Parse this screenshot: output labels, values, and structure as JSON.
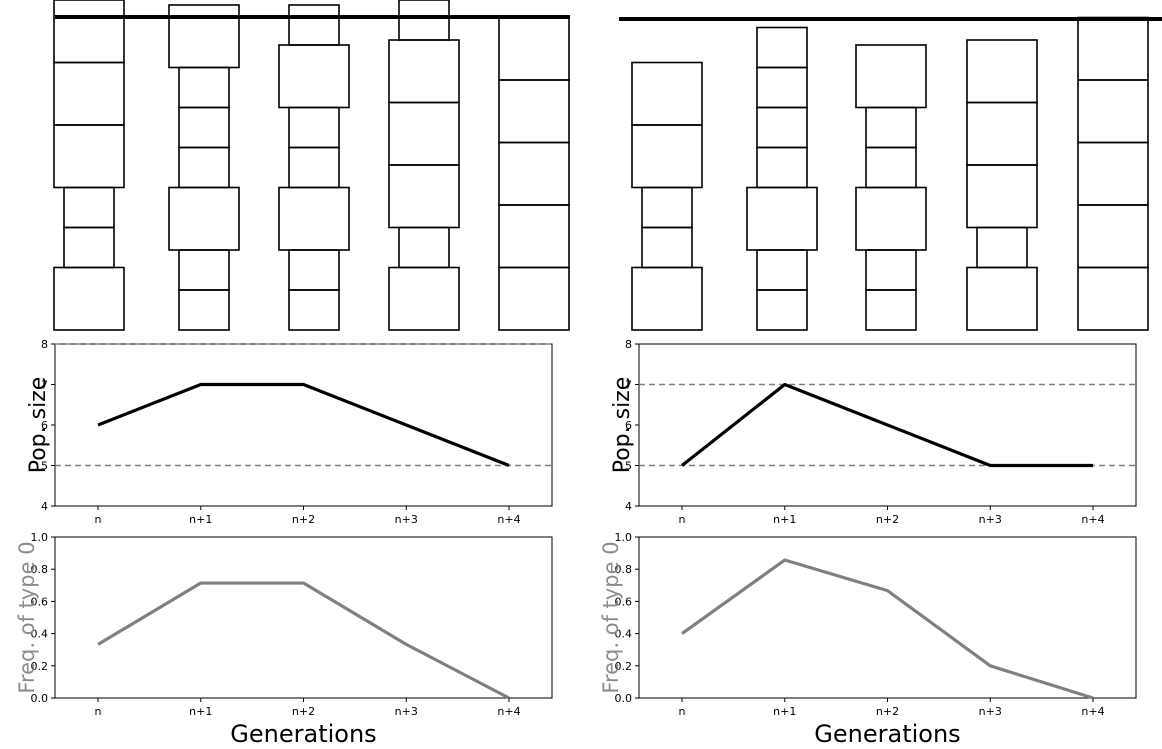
{
  "colors": {
    "popsize_line": "#000000",
    "freq_line": "#808080",
    "freq_label": "#8c8c8c",
    "dashed": "#808080",
    "axis": "#000000"
  },
  "chart_data": [
    {
      "panel": "left",
      "type": "cell-lineage-diagram",
      "columns": [
        {
          "gen": "n",
          "cells": [
            {
              "kind": "big",
              "split": "top"
            },
            {
              "kind": "big"
            },
            {
              "kind": "big"
            },
            {
              "kind": "small"
            },
            {
              "kind": "small"
            },
            {
              "kind": "big"
            }
          ]
        },
        {
          "gen": "n+1",
          "cells": [
            {
              "kind": "big",
              "split": "top"
            },
            {
              "kind": "small"
            },
            {
              "kind": "small"
            },
            {
              "kind": "small"
            },
            {
              "kind": "big"
            },
            {
              "kind": "small"
            },
            {
              "kind": "small"
            }
          ]
        },
        {
          "gen": "n+2",
          "cells": [
            {
              "kind": "small",
              "split": "top"
            },
            {
              "kind": "big"
            },
            {
              "kind": "small"
            },
            {
              "kind": "small"
            },
            {
              "kind": "big"
            },
            {
              "kind": "small"
            },
            {
              "kind": "small"
            }
          ]
        },
        {
          "gen": "n+3",
          "cells": [
            {
              "kind": "small",
              "split": "top"
            },
            {
              "kind": "big"
            },
            {
              "kind": "big"
            },
            {
              "kind": "big"
            },
            {
              "kind": "small"
            },
            {
              "kind": "big"
            }
          ]
        },
        {
          "gen": "n+4",
          "cells": [
            {
              "kind": "big"
            },
            {
              "kind": "big"
            },
            {
              "kind": "big"
            },
            {
              "kind": "big"
            },
            {
              "kind": "big"
            }
          ]
        }
      ]
    },
    {
      "panel": "right",
      "type": "cell-lineage-diagram",
      "columns": [
        {
          "gen": "n",
          "cells": [
            {
              "kind": "big"
            },
            {
              "kind": "big"
            },
            {
              "kind": "small"
            },
            {
              "kind": "small"
            },
            {
              "kind": "big"
            }
          ]
        },
        {
          "gen": "n+1",
          "cells": [
            {
              "kind": "small"
            },
            {
              "kind": "small"
            },
            {
              "kind": "small"
            },
            {
              "kind": "small"
            },
            {
              "kind": "big"
            },
            {
              "kind": "small"
            },
            {
              "kind": "small"
            }
          ]
        },
        {
          "gen": "n+2",
          "cells": [
            {
              "kind": "big"
            },
            {
              "kind": "small"
            },
            {
              "kind": "small"
            },
            {
              "kind": "big"
            },
            {
              "kind": "small"
            },
            {
              "kind": "small"
            }
          ]
        },
        {
          "gen": "n+3",
          "cells": [
            {
              "kind": "big"
            },
            {
              "kind": "big"
            },
            {
              "kind": "big"
            },
            {
              "kind": "small"
            },
            {
              "kind": "big"
            }
          ]
        },
        {
          "gen": "n+4",
          "cells": [
            {
              "kind": "big"
            },
            {
              "kind": "big"
            },
            {
              "kind": "big"
            },
            {
              "kind": "big"
            },
            {
              "kind": "big"
            }
          ]
        }
      ]
    },
    {
      "panel": "left",
      "type": "line",
      "categories": [
        "n",
        "n+1",
        "n+2",
        "n+3",
        "n+4"
      ],
      "values": [
        6,
        7,
        7,
        6,
        5
      ],
      "ylabel": "Pop. size",
      "ylim": [
        4,
        8
      ],
      "yticks": [
        "4",
        "5",
        "6",
        "7",
        "8"
      ],
      "hlines": [
        5,
        8
      ],
      "color": "#000000"
    },
    {
      "panel": "right",
      "type": "line",
      "categories": [
        "n",
        "n+1",
        "n+2",
        "n+3",
        "n+4"
      ],
      "values": [
        5,
        7,
        6,
        5,
        5
      ],
      "ylabel": "Pop. size",
      "ylim": [
        4,
        8
      ],
      "yticks": [
        "4",
        "5",
        "6",
        "7",
        "8"
      ],
      "hlines": [
        5,
        7
      ],
      "color": "#000000"
    },
    {
      "panel": "left",
      "type": "line",
      "categories": [
        "n",
        "n+1",
        "n+2",
        "n+3",
        "n+4"
      ],
      "values": [
        0.333,
        0.714,
        0.714,
        0.333,
        0.0
      ],
      "ylabel": "Freq. of type 0",
      "xlabel": "Generations",
      "ylim": [
        0,
        1
      ],
      "yticks": [
        "0.0",
        "0.2",
        "0.4",
        "0.6",
        "0.8",
        "1.0"
      ],
      "color": "#808080"
    },
    {
      "panel": "right",
      "type": "line",
      "categories": [
        "n",
        "n+1",
        "n+2",
        "n+3",
        "n+4"
      ],
      "values": [
        0.4,
        0.857,
        0.667,
        0.2,
        0.0
      ],
      "ylabel": "Freq. of type 0",
      "xlabel": "Generations",
      "ylim": [
        0,
        1
      ],
      "yticks": [
        "0.0",
        "0.2",
        "0.4",
        "0.6",
        "0.8",
        "1.0"
      ],
      "color": "#808080"
    }
  ]
}
